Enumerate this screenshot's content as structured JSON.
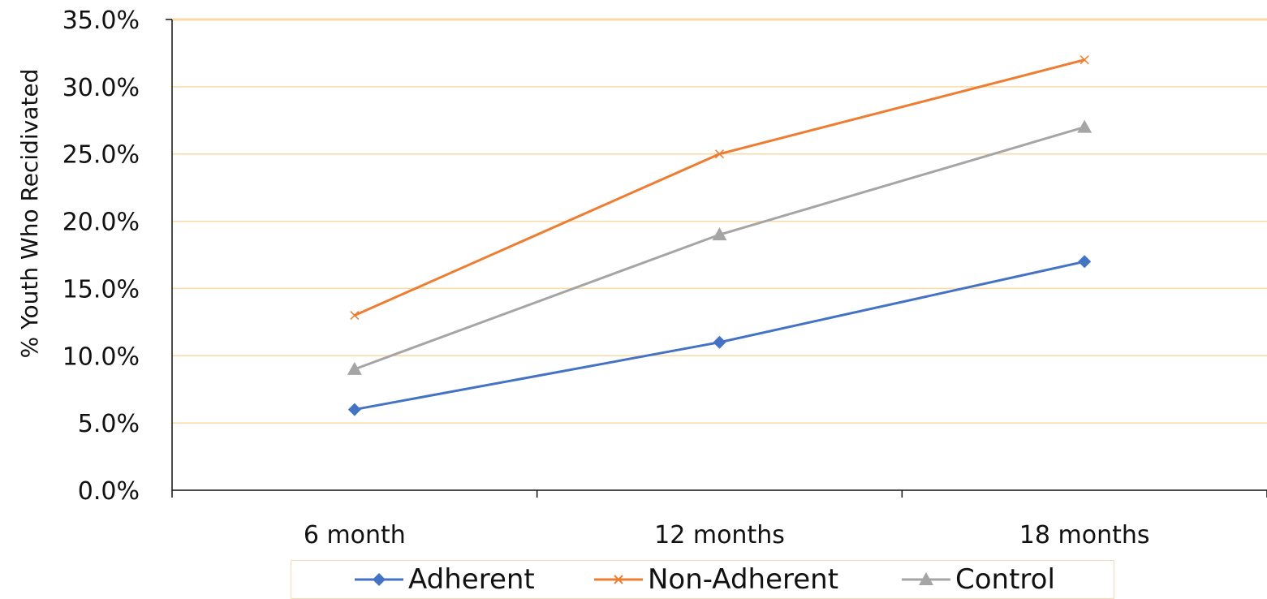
{
  "chart_data": {
    "type": "line",
    "categories": [
      "6 month",
      "12 months",
      "18 months"
    ],
    "series": [
      {
        "name": "Adherent",
        "values": [
          6.0,
          11.0,
          17.0
        ],
        "color": "#4472c4",
        "marker": "diamond"
      },
      {
        "name": "Non-Adherent",
        "values": [
          13.0,
          25.0,
          32.0
        ],
        "color": "#ed7d31",
        "marker": "x"
      },
      {
        "name": "Control",
        "values": [
          9.0,
          19.0,
          27.0
        ],
        "color": "#a5a5a5",
        "marker": "triangle"
      }
    ],
    "ylabel": "% Youth Who Recidivated",
    "ylim": [
      0,
      35
    ],
    "yticks": [
      "0.0%",
      "5.0%",
      "10.0%",
      "15.0%",
      "20.0%",
      "25.0%",
      "30.0%",
      "35.0%"
    ],
    "grid": true,
    "grid_color": "#fbd9a5",
    "axis_color": "#111111",
    "legend_position": "bottom"
  }
}
